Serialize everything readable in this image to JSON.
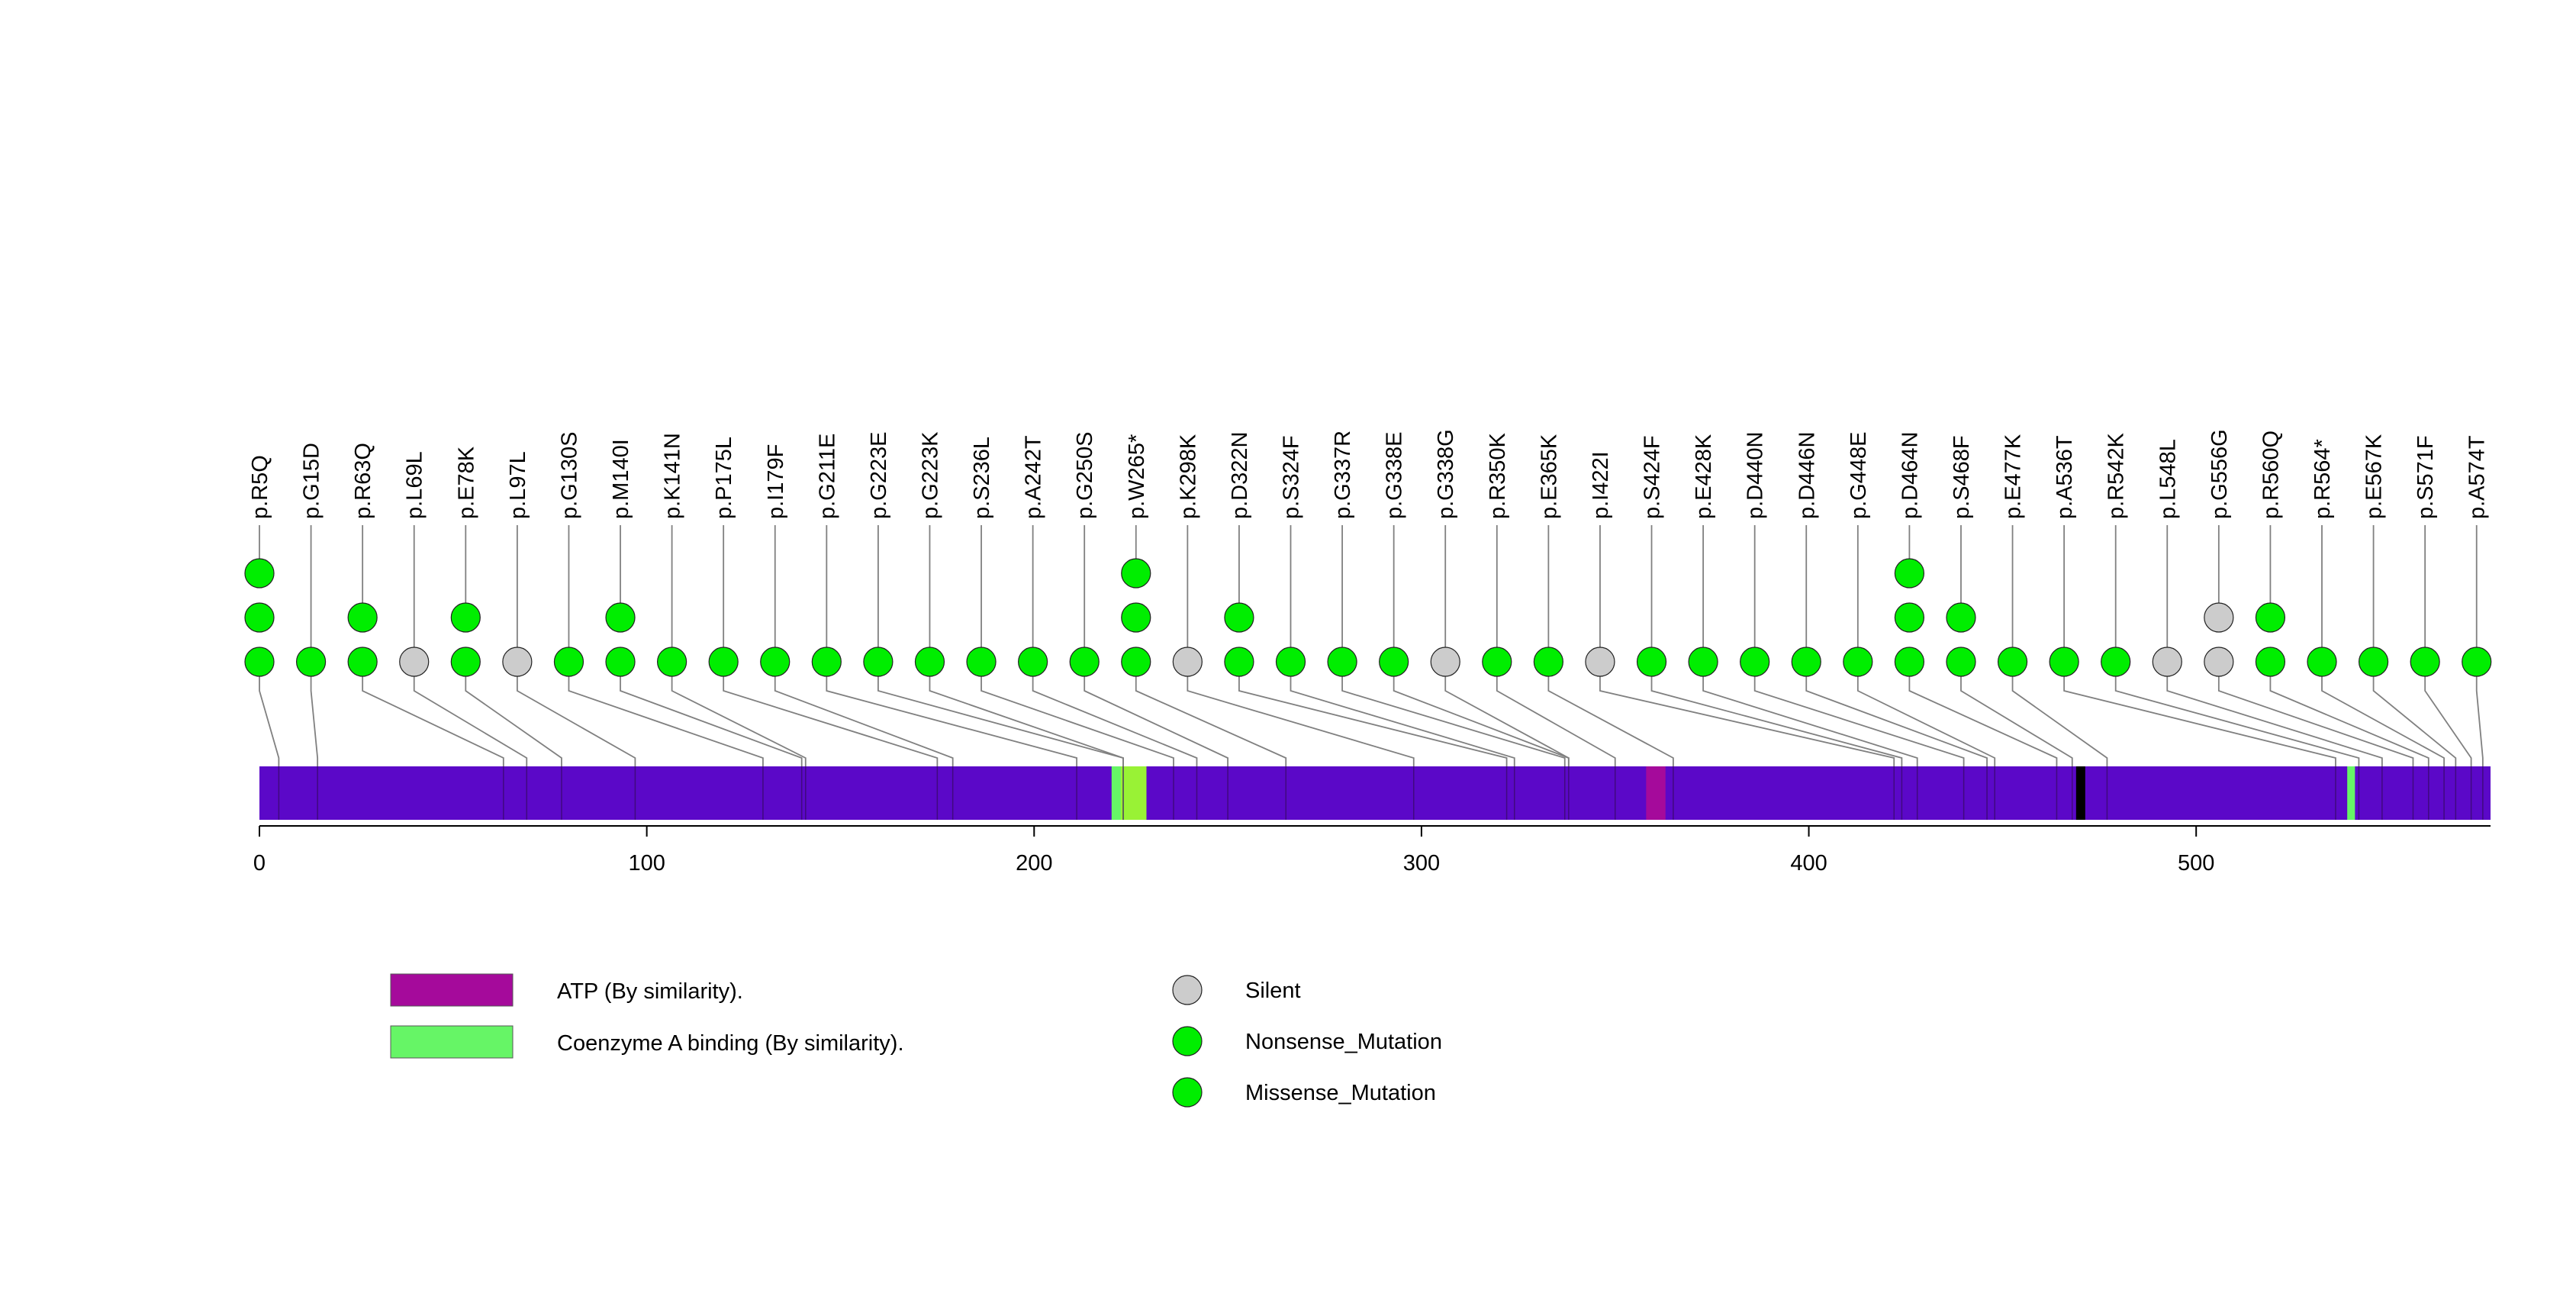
{
  "chart_data": {
    "type": "lollipop",
    "protein_length": 576,
    "x_ticks": [
      0,
      100,
      200,
      300,
      400,
      500
    ],
    "colors": {
      "protein_bar": "#5b08c8",
      "atp_domain": "#a50a9b",
      "coa_domain": "#66f566",
      "coa_domain_inner": "#99f235",
      "black_region": "#000000",
      "missense": "#00ee00",
      "silent": "#cccccc",
      "stem": "#808080",
      "marker_stroke": "#222222"
    },
    "domains": [
      {
        "name": "ATP (By similarity).",
        "start": 358,
        "end": 363,
        "color": "#a50a9b"
      },
      {
        "name": "Coenzyme A binding (By similarity).",
        "start": 220,
        "end": 229,
        "color": "#66f566"
      },
      {
        "name": "Coenzyme A binding (By similarity).",
        "start": 539,
        "end": 541,
        "color": "#66f566"
      }
    ],
    "mutations": [
      {
        "label": "p.R5Q",
        "position": 5,
        "count": 3,
        "type": "missense"
      },
      {
        "label": "p.G15D",
        "position": 15,
        "count": 1,
        "type": "missense"
      },
      {
        "label": "p.R63Q",
        "position": 63,
        "count": 2,
        "type": "missense"
      },
      {
        "label": "p.L69L",
        "position": 69,
        "count": 1,
        "type": "silent"
      },
      {
        "label": "p.E78K",
        "position": 78,
        "count": 2,
        "type": "missense"
      },
      {
        "label": "p.L97L",
        "position": 97,
        "count": 1,
        "type": "silent"
      },
      {
        "label": "p.G130S",
        "position": 130,
        "count": 1,
        "type": "missense"
      },
      {
        "label": "p.M140I",
        "position": 140,
        "count": 2,
        "type": "missense"
      },
      {
        "label": "p.K141N",
        "position": 141,
        "count": 1,
        "type": "missense"
      },
      {
        "label": "p.P175L",
        "position": 175,
        "count": 1,
        "type": "missense"
      },
      {
        "label": "p.I179F",
        "position": 179,
        "count": 1,
        "type": "missense"
      },
      {
        "label": "p.G211E",
        "position": 211,
        "count": 1,
        "type": "missense"
      },
      {
        "label": "p.G223E",
        "position": 223,
        "count": 1,
        "type": "missense"
      },
      {
        "label": "p.G223K",
        "position": 223,
        "count": 1,
        "type": "missense"
      },
      {
        "label": "p.S236L",
        "position": 236,
        "count": 1,
        "type": "missense"
      },
      {
        "label": "p.A242T",
        "position": 242,
        "count": 1,
        "type": "missense"
      },
      {
        "label": "p.G250S",
        "position": 250,
        "count": 1,
        "type": "missense"
      },
      {
        "label": "p.W265*",
        "position": 265,
        "count": 3,
        "type": "nonsense"
      },
      {
        "label": "p.K298K",
        "position": 298,
        "count": 1,
        "type": "silent"
      },
      {
        "label": "p.D322N",
        "position": 322,
        "count": 2,
        "type": "missense"
      },
      {
        "label": "p.S324F",
        "position": 324,
        "count": 1,
        "type": "missense"
      },
      {
        "label": "p.G337R",
        "position": 337,
        "count": 1,
        "type": "missense"
      },
      {
        "label": "p.G338E",
        "position": 338,
        "count": 1,
        "type": "missense"
      },
      {
        "label": "p.G338G",
        "position": 338,
        "count": 1,
        "type": "silent"
      },
      {
        "label": "p.R350K",
        "position": 350,
        "count": 1,
        "type": "missense"
      },
      {
        "label": "p.E365K",
        "position": 365,
        "count": 1,
        "type": "missense"
      },
      {
        "label": "p.I422I",
        "position": 422,
        "count": 1,
        "type": "silent"
      },
      {
        "label": "p.S424F",
        "position": 424,
        "count": 1,
        "type": "missense"
      },
      {
        "label": "p.E428K",
        "position": 428,
        "count": 1,
        "type": "missense"
      },
      {
        "label": "p.D440N",
        "position": 440,
        "count": 1,
        "type": "missense"
      },
      {
        "label": "p.D446N",
        "position": 446,
        "count": 1,
        "type": "missense"
      },
      {
        "label": "p.G448E",
        "position": 448,
        "count": 1,
        "type": "missense"
      },
      {
        "label": "p.D464N",
        "position": 464,
        "count": 3,
        "type": "missense"
      },
      {
        "label": "p.S468F",
        "position": 468,
        "count": 2,
        "type": "missense"
      },
      {
        "label": "p.E477K",
        "position": 477,
        "count": 1,
        "type": "missense"
      },
      {
        "label": "p.A536T",
        "position": 536,
        "count": 1,
        "type": "missense"
      },
      {
        "label": "p.R542K",
        "position": 542,
        "count": 1,
        "type": "missense"
      },
      {
        "label": "p.L548L",
        "position": 548,
        "count": 1,
        "type": "silent"
      },
      {
        "label": "p.G556G",
        "position": 556,
        "count": 2,
        "type": "silent"
      },
      {
        "label": "p.R560Q",
        "position": 560,
        "count": 2,
        "type": "missense"
      },
      {
        "label": "p.R564*",
        "position": 564,
        "count": 1,
        "type": "nonsense"
      },
      {
        "label": "p.E567K",
        "position": 567,
        "count": 1,
        "type": "missense"
      },
      {
        "label": "p.S571F",
        "position": 571,
        "count": 1,
        "type": "missense"
      },
      {
        "label": "p.A574T",
        "position": 574,
        "count": 1,
        "type": "missense"
      }
    ],
    "legend": {
      "domains": [
        {
          "label": "ATP (By similarity).",
          "color": "#a50a9b"
        },
        {
          "label": "Coenzyme A binding (By similarity).",
          "color": "#66f566"
        }
      ],
      "mutation_types": [
        {
          "label": "Silent",
          "color": "#cccccc"
        },
        {
          "label": "Nonsense_Mutation",
          "color": "#00ee00"
        },
        {
          "label": "Missense_Mutation",
          "color": "#00ee00"
        }
      ]
    }
  }
}
